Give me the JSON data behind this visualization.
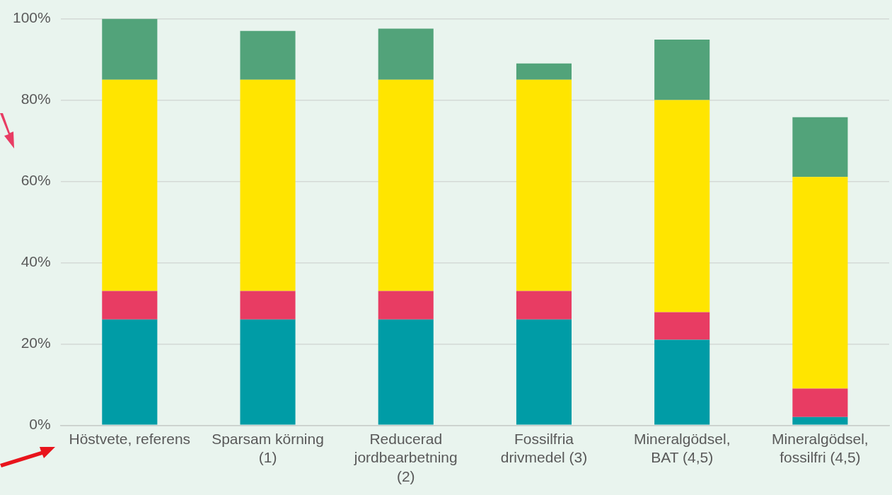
{
  "chart_data": {
    "type": "bar",
    "stacked": true,
    "categories": [
      "Höstvete, referens",
      "Sparsam körning (1)",
      "Reducerad jordbearbetning (2)",
      "Fossilfria drivmedel (3)",
      "Mineralgödsel, BAT (4,5)",
      "Mineralgödsel, fossilfri (4,5)"
    ],
    "series": [
      {
        "color": "#009ca6",
        "values": [
          26,
          26,
          26,
          26,
          21,
          2
        ]
      },
      {
        "color": "#e83c63",
        "values": [
          7,
          7,
          7,
          7,
          6.8,
          7
        ]
      },
      {
        "color": "#ffe500",
        "values": [
          52,
          52,
          52,
          52,
          52.2,
          52.1
        ]
      },
      {
        "color": "#52a37a",
        "values": [
          15,
          12,
          12.6,
          4,
          14.9,
          14.7
        ]
      }
    ],
    "ylim": [
      0,
      100
    ],
    "yticks": [
      {
        "value": 0,
        "label": "0%"
      },
      {
        "value": 20,
        "label": "20%"
      },
      {
        "value": 40,
        "label": "40%"
      },
      {
        "value": 60,
        "label": "60%"
      },
      {
        "value": 80,
        "label": "80%"
      },
      {
        "value": 100,
        "label": "100%"
      }
    ],
    "grid": "y",
    "legend": false
  }
}
